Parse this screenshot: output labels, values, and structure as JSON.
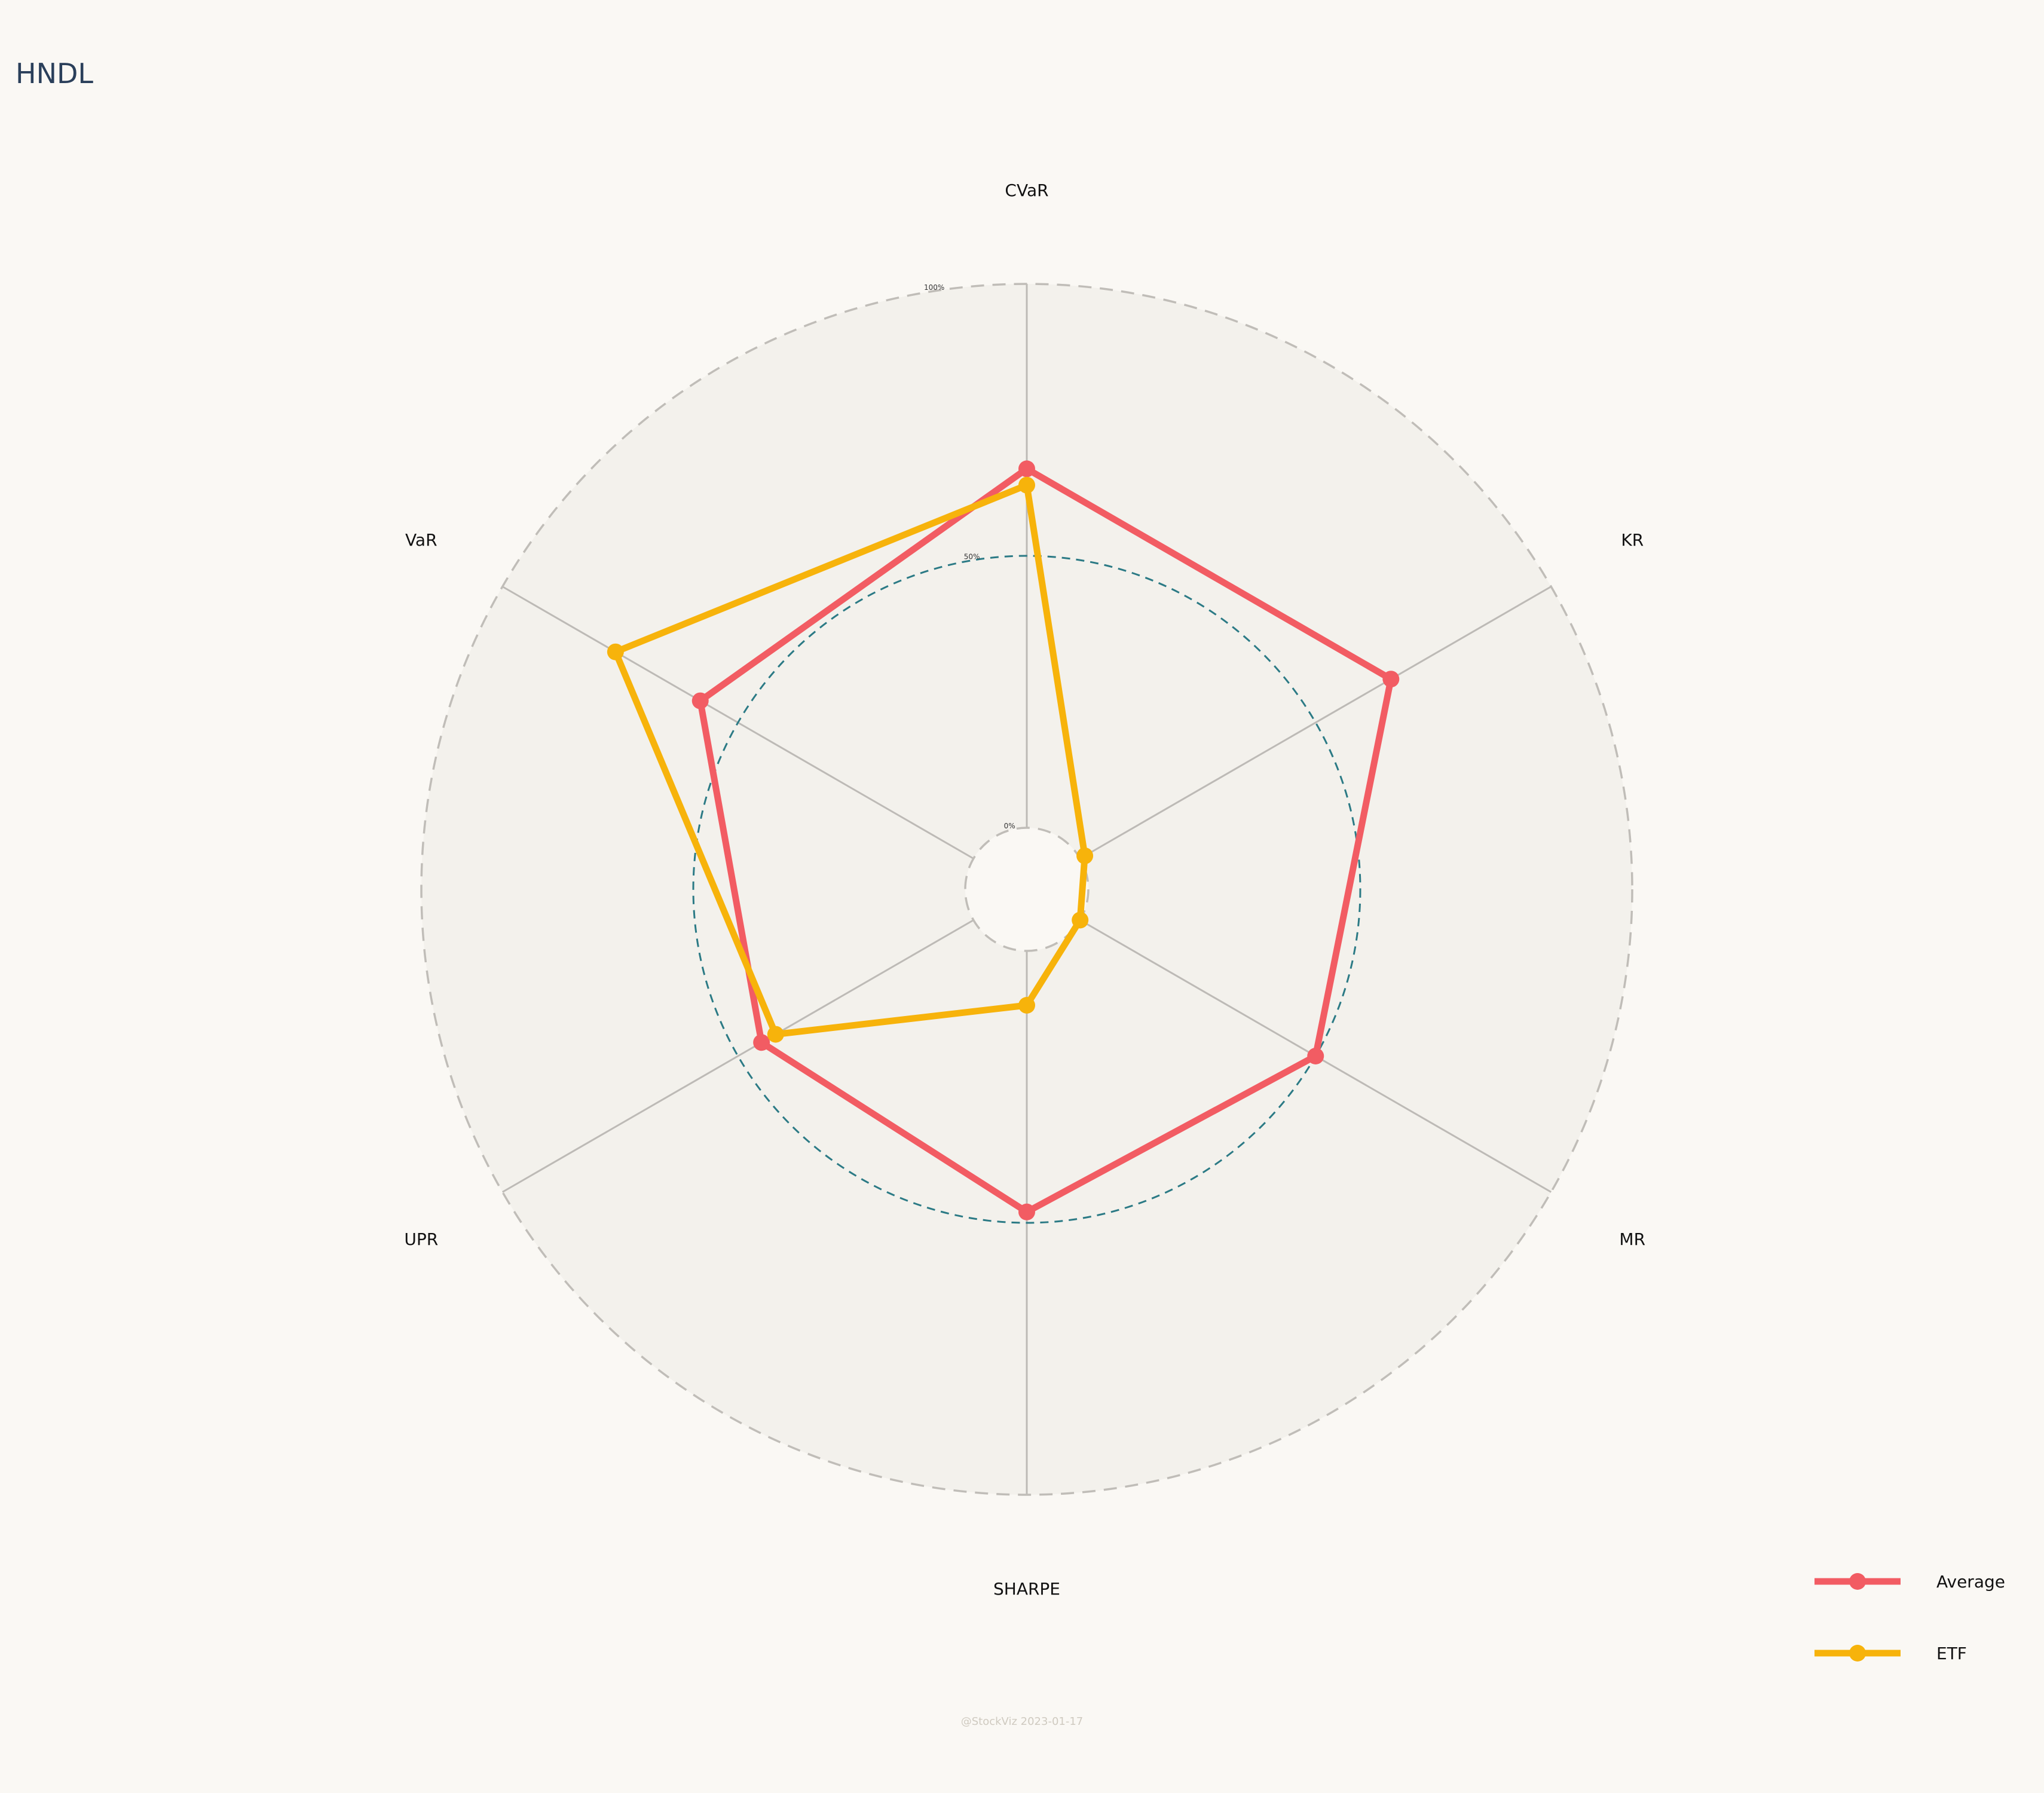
{
  "chart_data": {
    "type": "radar",
    "title": "HNDL",
    "axes": [
      "CVaR",
      "KR",
      "MR",
      "SHARPE",
      "UPR",
      "VaR"
    ],
    "rings": [
      {
        "value": 0,
        "label": "0%"
      },
      {
        "value": 50,
        "label": "50%"
      },
      {
        "value": 100,
        "label": "100%"
      }
    ],
    "range": [
      0,
      100
    ],
    "series": [
      {
        "name": "Average",
        "color": "#f25c63",
        "values": [
          66,
          66,
          50,
          48,
          45,
          58
        ]
      },
      {
        "name": "ETF",
        "color": "#f7b30b",
        "values": [
          63,
          1,
          0,
          10,
          42,
          76
        ]
      }
    ],
    "legend_position": "bottom-right",
    "watermark": "@StockViz 2023-01-17"
  },
  "colors": {
    "background": "#faf8f4",
    "plot_fill": "#f3f1ec",
    "spoke": "#bdbab6",
    "outer_ring": "#c0bdb8",
    "mid_ring": "#2b7a85",
    "title": "#2a3f5a"
  }
}
